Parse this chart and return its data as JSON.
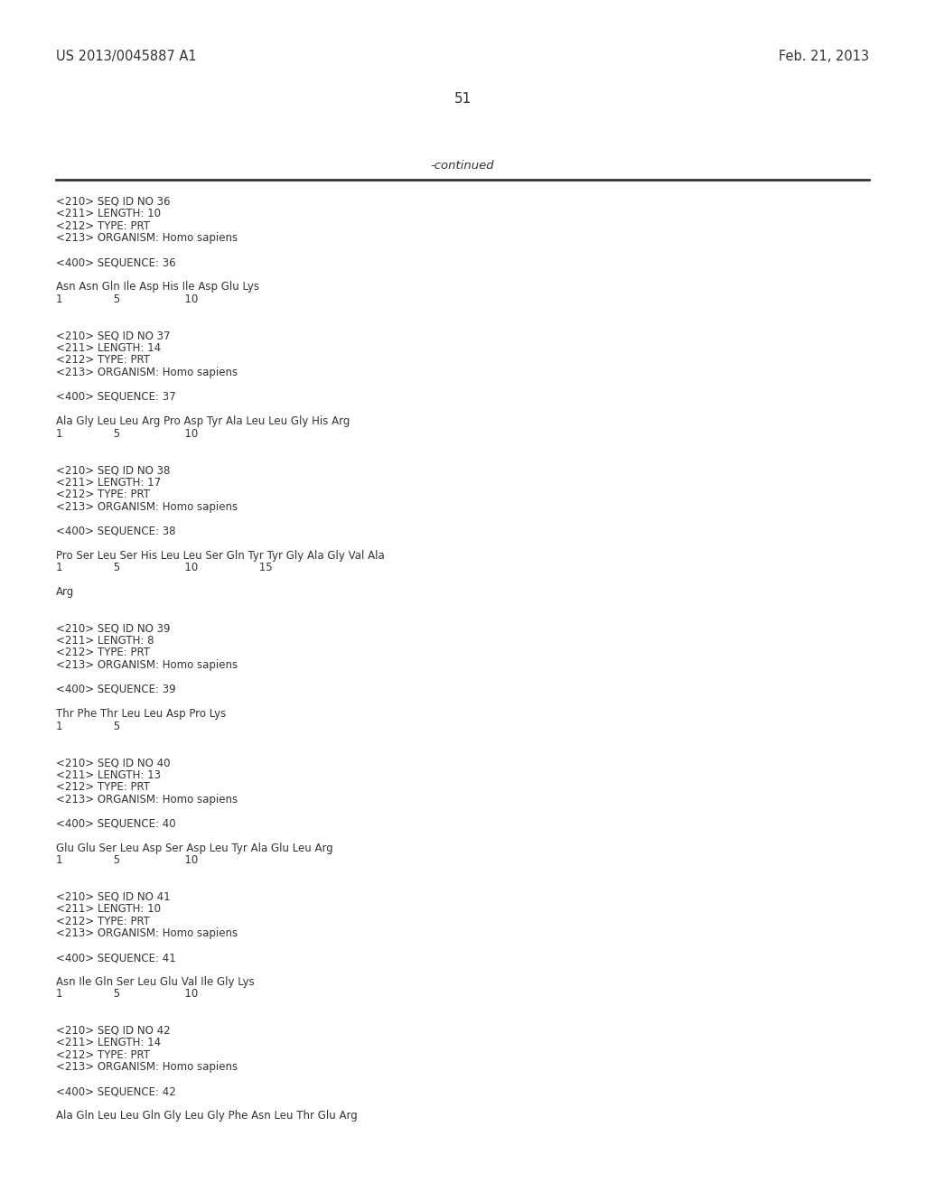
{
  "background_color": "#ffffff",
  "header_left": "US 2013/0045887 A1",
  "header_right": "Feb. 21, 2013",
  "page_number": "51",
  "continued_text": "-continued",
  "header_fontsize": 10.5,
  "body_fontsize": 8.5,
  "page_num_fontsize": 11,
  "continued_fontsize": 9.5,
  "content_lines": [
    "<210> SEQ ID NO 36",
    "<211> LENGTH: 10",
    "<212> TYPE: PRT",
    "<213> ORGANISM: Homo sapiens",
    "",
    "<400> SEQUENCE: 36",
    "",
    "Asn Asn Gln Ile Asp His Ile Asp Glu Lys",
    "1               5                   10",
    "",
    "",
    "<210> SEQ ID NO 37",
    "<211> LENGTH: 14",
    "<212> TYPE: PRT",
    "<213> ORGANISM: Homo sapiens",
    "",
    "<400> SEQUENCE: 37",
    "",
    "Ala Gly Leu Leu Arg Pro Asp Tyr Ala Leu Leu Gly His Arg",
    "1               5                   10",
    "",
    "",
    "<210> SEQ ID NO 38",
    "<211> LENGTH: 17",
    "<212> TYPE: PRT",
    "<213> ORGANISM: Homo sapiens",
    "",
    "<400> SEQUENCE: 38",
    "",
    "Pro Ser Leu Ser His Leu Leu Ser Gln Tyr Tyr Gly Ala Gly Val Ala",
    "1               5                   10                  15",
    "",
    "Arg",
    "",
    "",
    "<210> SEQ ID NO 39",
    "<211> LENGTH: 8",
    "<212> TYPE: PRT",
    "<213> ORGANISM: Homo sapiens",
    "",
    "<400> SEQUENCE: 39",
    "",
    "Thr Phe Thr Leu Leu Asp Pro Lys",
    "1               5",
    "",
    "",
    "<210> SEQ ID NO 40",
    "<211> LENGTH: 13",
    "<212> TYPE: PRT",
    "<213> ORGANISM: Homo sapiens",
    "",
    "<400> SEQUENCE: 40",
    "",
    "Glu Glu Ser Leu Asp Ser Asp Leu Tyr Ala Glu Leu Arg",
    "1               5                   10",
    "",
    "",
    "<210> SEQ ID NO 41",
    "<211> LENGTH: 10",
    "<212> TYPE: PRT",
    "<213> ORGANISM: Homo sapiens",
    "",
    "<400> SEQUENCE: 41",
    "",
    "Asn Ile Gln Ser Leu Glu Val Ile Gly Lys",
    "1               5                   10",
    "",
    "",
    "<210> SEQ ID NO 42",
    "<211> LENGTH: 14",
    "<212> TYPE: PRT",
    "<213> ORGANISM: Homo sapiens",
    "",
    "<400> SEQUENCE: 42",
    "",
    "Ala Gln Leu Leu Gln Gly Leu Gly Phe Asn Leu Thr Glu Arg"
  ]
}
